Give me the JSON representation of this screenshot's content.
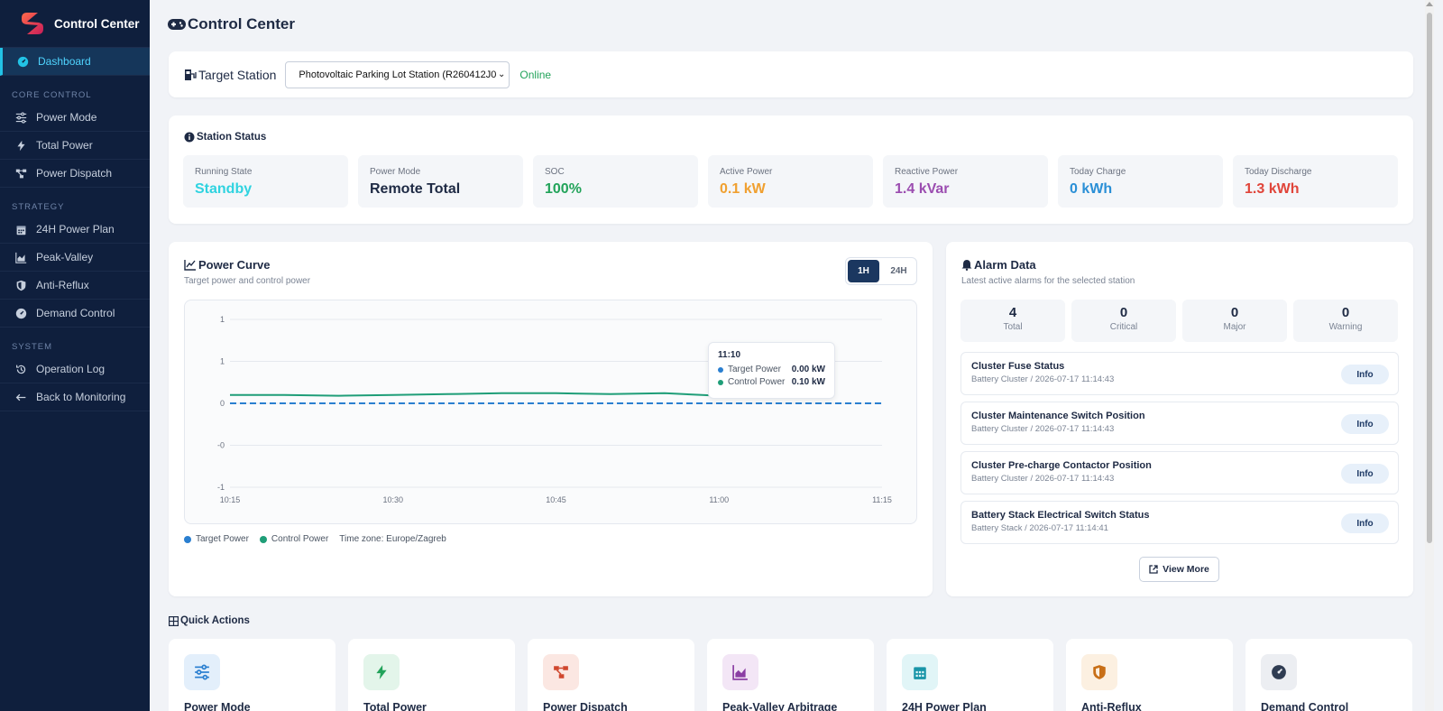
{
  "app": {
    "title": "Control Center"
  },
  "sidebar": {
    "items": [
      {
        "label": "Dashboard",
        "icon": "gauge-icon",
        "active": true
      },
      {
        "section": "CORE CONTROL"
      },
      {
        "label": "Power Mode",
        "icon": "sliders-icon"
      },
      {
        "label": "Total Power",
        "icon": "bolt-icon"
      },
      {
        "label": "Power Dispatch",
        "icon": "dispatch-icon"
      },
      {
        "section": "STRATEGY"
      },
      {
        "label": "24H Power Plan",
        "icon": "calendar-icon"
      },
      {
        "label": "Peak-Valley",
        "icon": "area-chart-icon"
      },
      {
        "label": "Anti-Reflux",
        "icon": "shield-icon"
      },
      {
        "label": "Demand Control",
        "icon": "gauge-icon"
      },
      {
        "section": "SYSTEM"
      },
      {
        "label": "Operation Log",
        "icon": "history-icon"
      },
      {
        "label": "Back to Monitoring",
        "icon": "arrow-left-icon"
      }
    ]
  },
  "page": {
    "title": "Control Center"
  },
  "target_station": {
    "label": "Target Station",
    "selected": "Photovoltaic Parking Lot Station (R260412J0",
    "status": "Online"
  },
  "station_status": {
    "title": "Station Status",
    "tiles": [
      {
        "label": "Running State",
        "value": "Standby",
        "color": "#2fd3e0"
      },
      {
        "label": "Power Mode",
        "value": "Remote Total",
        "color": "#1e2a44"
      },
      {
        "label": "SOC",
        "value": "100%",
        "color": "#22a35a"
      },
      {
        "label": "Active Power",
        "value": "0.1 kW",
        "color": "#f0a030"
      },
      {
        "label": "Reactive Power",
        "value": "1.4 kVar",
        "color": "#9b4db0"
      },
      {
        "label": "Today Charge",
        "value": "0 kWh",
        "color": "#2a8fd6"
      },
      {
        "label": "Today Discharge",
        "value": "1.3 kWh",
        "color": "#e0453a"
      }
    ]
  },
  "power_curve": {
    "title": "Power Curve",
    "subtitle": "Target power and control power",
    "range_buttons": [
      "1H",
      "24H"
    ],
    "active_range": "1H",
    "timezone": "Time zone: Europe/Zagreb",
    "tooltip": {
      "time": "11:10",
      "rows": [
        {
          "name": "Target Power",
          "value": "0.00 kW",
          "color": "#2a7fd0"
        },
        {
          "name": "Control Power",
          "value": "0.10 kW",
          "color": "#1f9e78"
        }
      ]
    }
  },
  "chart_data": {
    "type": "line",
    "x_ticks": [
      "10:15",
      "10:30",
      "10:45",
      "11:00",
      "11:15"
    ],
    "y_tick_labels": [
      "1",
      "1",
      "0",
      "-0",
      "-1"
    ],
    "ylim": [
      -1,
      1
    ],
    "series": [
      {
        "name": "Target Power",
        "color": "#2a7fd0",
        "dashed": true,
        "x": [
          "10:15",
          "10:20",
          "10:25",
          "10:30",
          "10:35",
          "10:40",
          "10:45",
          "10:50",
          "10:55",
          "11:00",
          "11:05",
          "11:10",
          "11:15"
        ],
        "y": [
          0.0,
          0.0,
          0.0,
          0.0,
          0.0,
          0.0,
          0.0,
          0.0,
          0.0,
          0.0,
          0.0,
          0.0,
          0.0
        ]
      },
      {
        "name": "Control Power",
        "color": "#1f9e78",
        "dashed": false,
        "x": [
          "10:15",
          "10:20",
          "10:25",
          "10:30",
          "10:35",
          "10:40",
          "10:45",
          "10:50",
          "10:55",
          "11:00",
          "11:05",
          "11:10"
        ],
        "y": [
          0.1,
          0.1,
          0.09,
          0.1,
          0.11,
          0.12,
          0.12,
          0.11,
          0.12,
          0.09,
          0.11,
          0.1
        ]
      }
    ]
  },
  "alarm": {
    "title": "Alarm Data",
    "subtitle": "Latest active alarms for the selected station",
    "stats": [
      {
        "value": "4",
        "label": "Total"
      },
      {
        "value": "0",
        "label": "Critical"
      },
      {
        "value": "0",
        "label": "Major"
      },
      {
        "value": "0",
        "label": "Warning"
      }
    ],
    "items": [
      {
        "name": "Cluster Fuse Status",
        "meta": "Battery Cluster / 2026-07-17 11:14:43",
        "level": "Info"
      },
      {
        "name": "Cluster Maintenance Switch Position",
        "meta": "Battery Cluster / 2026-07-17 11:14:43",
        "level": "Info"
      },
      {
        "name": "Cluster Pre-charge Contactor Position",
        "meta": "Battery Cluster / 2026-07-17 11:14:43",
        "level": "Info"
      },
      {
        "name": "Battery Stack Electrical Switch Status",
        "meta": "Battery Stack / 2026-07-17 11:14:41",
        "level": "Info"
      }
    ],
    "view_more": "View More"
  },
  "quick_actions": {
    "title": "Quick Actions",
    "items": [
      {
        "label": "Power Mode",
        "icon": "sliders-icon",
        "bg": "#e3effb",
        "fg": "#2a7fd0"
      },
      {
        "label": "Total Power",
        "icon": "bolt-icon",
        "bg": "#e3f5ea",
        "fg": "#22a35a"
      },
      {
        "label": "Power Dispatch",
        "icon": "dispatch-icon",
        "bg": "#fbe7e2",
        "fg": "#d0472e"
      },
      {
        "label": "Peak-Valley Arbitrage",
        "icon": "area-chart-icon",
        "bg": "#f3e6f6",
        "fg": "#8b3ea4"
      },
      {
        "label": "24H Power Plan",
        "icon": "calendar-icon",
        "bg": "#e1f5f7",
        "fg": "#1995a8"
      },
      {
        "label": "Anti-Reflux",
        "icon": "shield-icon",
        "bg": "#fcf0e1",
        "fg": "#c86f17"
      },
      {
        "label": "Demand Control",
        "icon": "gauge-icon",
        "bg": "#eceef2",
        "fg": "#2f3c52"
      }
    ]
  }
}
